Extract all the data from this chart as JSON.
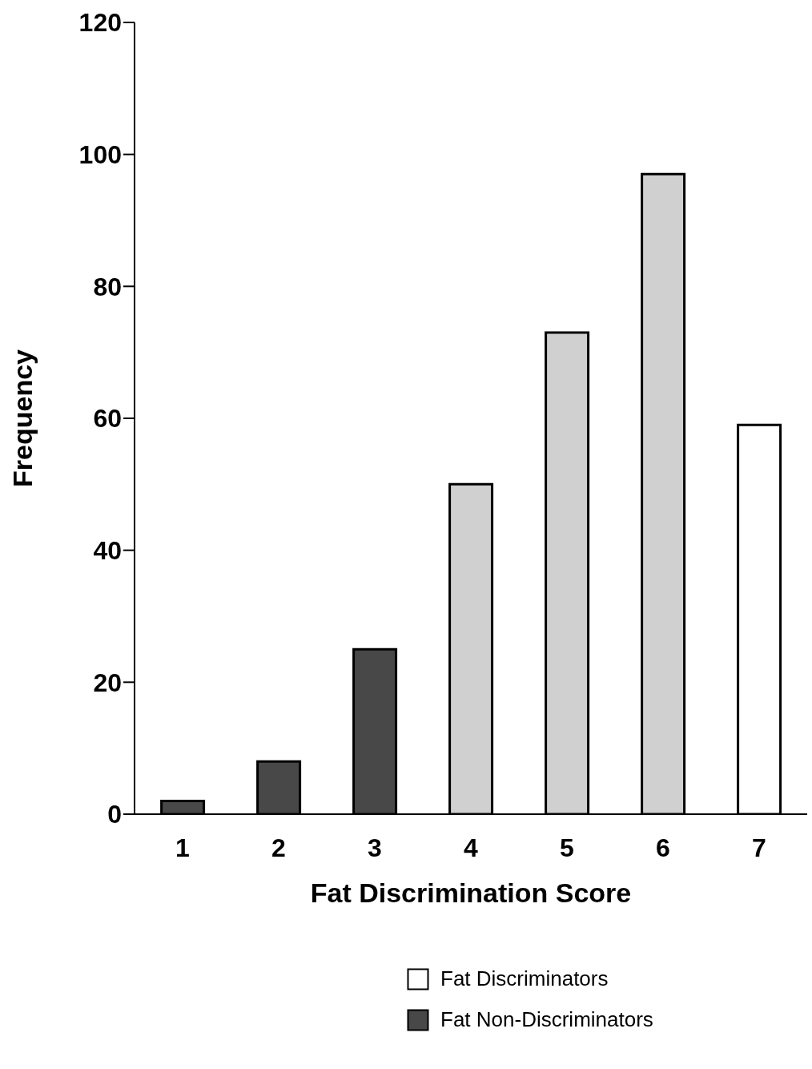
{
  "chart_data": {
    "type": "bar",
    "xlabel": "Fat Discrimination Score",
    "ylabel": "Frequency",
    "categories": [
      "1",
      "2",
      "3",
      "4",
      "5",
      "6",
      "7"
    ],
    "stacked": true,
    "series": [
      {
        "name": "Fat Discriminators",
        "color": "#ffffff",
        "values": [
          null,
          null,
          null,
          null,
          null,
          null,
          59
        ]
      },
      {
        "name": "Fat Non-Discriminators",
        "color": "#484848",
        "values": [
          2,
          8,
          25,
          null,
          null,
          null,
          null
        ]
      },
      {
        "color": "#d0d0d0",
        "values": [
          null,
          null,
          null,
          50,
          73,
          97,
          null
        ]
      }
    ],
    "ylim": [
      0,
      120
    ],
    "yticks": [
      0,
      20,
      40,
      60,
      80,
      100,
      120
    ],
    "grid": false,
    "legend": "bottom"
  }
}
